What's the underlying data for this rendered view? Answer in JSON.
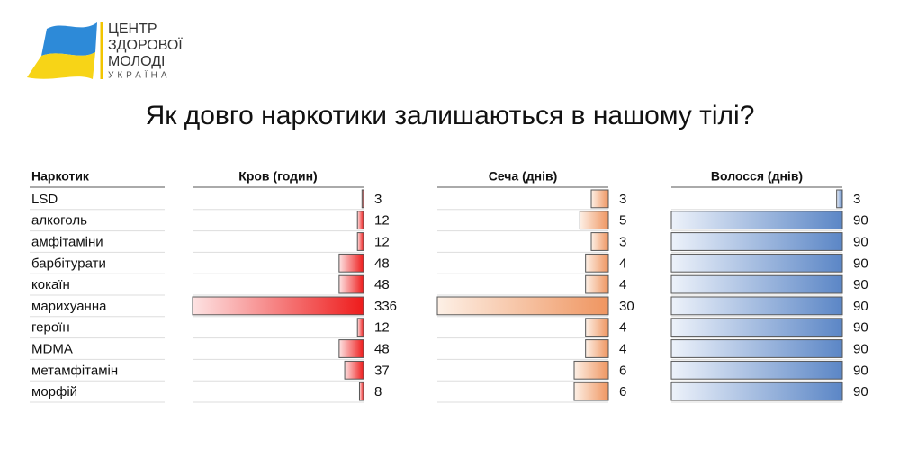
{
  "logo": {
    "lines": [
      "ЦЕНТР",
      "ЗДОРОВОЇ",
      "МОЛОДІ"
    ],
    "subtitle": "УКРАЇНА"
  },
  "title": "Як довго наркотики залишаються в нашому тілі?",
  "table": {
    "columns": [
      "Наркотик",
      "Кров (годин)",
      "Сеча (днів)",
      "Волосся (днів)"
    ],
    "rows": [
      [
        "LSD",
        3,
        3,
        3
      ],
      [
        "алкоголь",
        12,
        5,
        90
      ],
      [
        "амфітаміни",
        12,
        3,
        90
      ],
      [
        "барбітурати",
        48,
        4,
        90
      ],
      [
        "кокаїн",
        48,
        4,
        90
      ],
      [
        "марихуанна",
        336,
        30,
        90
      ],
      [
        "героїн",
        12,
        4,
        90
      ],
      [
        "MDMA",
        48,
        4,
        90
      ],
      [
        "метамфітамін",
        37,
        6,
        90
      ],
      [
        "морфій",
        8,
        6,
        90
      ]
    ]
  }
}
